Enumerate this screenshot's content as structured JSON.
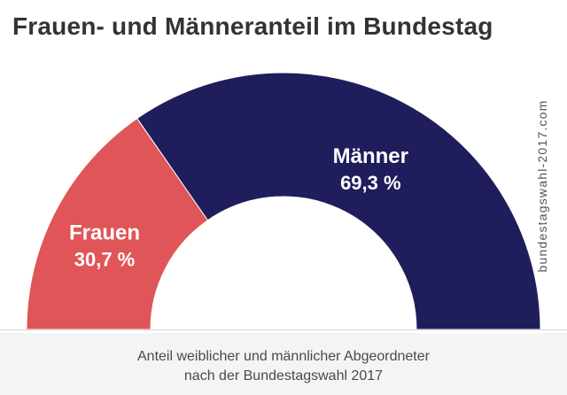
{
  "title": "Frauen- und Männeranteil im Bundestag",
  "source": "bundestagswahl-2017.com",
  "caption": {
    "line1": "Anteil weiblicher und männlicher Abgeordneter",
    "line2": "nach der Bundestagswahl 2017"
  },
  "colors": {
    "frauen": "#e05557",
    "maenner": "#1f1d5c",
    "background": "#ffffff",
    "footer": "#f4f4f4"
  },
  "chart_data": {
    "type": "pie",
    "variant": "semicircle-donut",
    "title": "Frauen- und Männeranteil im Bundestag",
    "slices": [
      {
        "name": "Frauen",
        "value": 30.7,
        "label": "30,7 %"
      },
      {
        "name": "Männer",
        "value": 69.3,
        "label": "69,3 %"
      }
    ]
  }
}
